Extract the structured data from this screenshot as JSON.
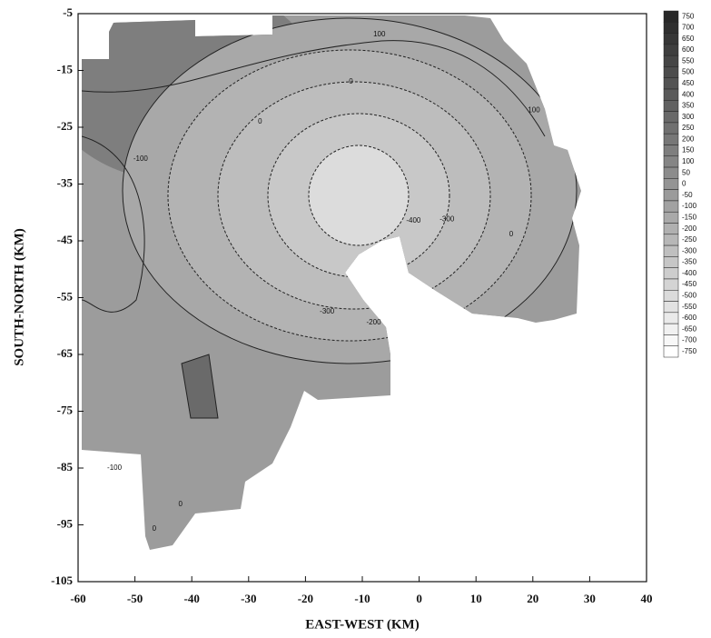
{
  "chart_data": {
    "type": "contour",
    "x_label": "EAST-WEST (KM)",
    "y_label": "SOUTH-NORTH (KM)",
    "xlim": [
      -60,
      40
    ],
    "xticks": [
      -60,
      -50,
      -40,
      -30,
      -20,
      -10,
      0,
      10,
      20,
      30,
      40
    ],
    "ylim": [
      -105,
      -5
    ],
    "yticks": [
      -5,
      -15,
      -25,
      -35,
      -45,
      -55,
      -65,
      -75,
      -85,
      -95,
      -105
    ],
    "colorbar": {
      "lim": [
        -750,
        750
      ],
      "ticks": [
        750,
        700,
        650,
        600,
        550,
        500,
        450,
        400,
        350,
        300,
        250,
        200,
        150,
        100,
        50,
        0,
        -50,
        -100,
        -150,
        -200,
        -250,
        -300,
        -350,
        -400,
        -450,
        -500,
        -550,
        -600,
        -650,
        -700,
        -750
      ]
    },
    "contour_labels": [
      {
        "text": "100",
        "x": -7,
        "y": -8.7
      },
      {
        "text": "0",
        "x": -12,
        "y": -17
      },
      {
        "text": "0",
        "x": -28,
        "y": -24
      },
      {
        "text": "100",
        "x": 20.2,
        "y": -22
      },
      {
        "text": "-100",
        "x": -49,
        "y": -30.6
      },
      {
        "text": "-300",
        "x": 4.9,
        "y": -41.2
      },
      {
        "text": "-400",
        "x": -1,
        "y": -41.5
      },
      {
        "text": "-300",
        "x": -16.2,
        "y": -57.5
      },
      {
        "text": "-200",
        "x": -8,
        "y": -59.4
      },
      {
        "text": "0",
        "x": 16.2,
        "y": -43.9
      },
      {
        "text": "-100",
        "x": -53.6,
        "y": -85
      },
      {
        "text": "0",
        "x": -42,
        "y": -91.4
      },
      {
        "text": "0",
        "x": -46.6,
        "y": -95.7
      }
    ]
  }
}
